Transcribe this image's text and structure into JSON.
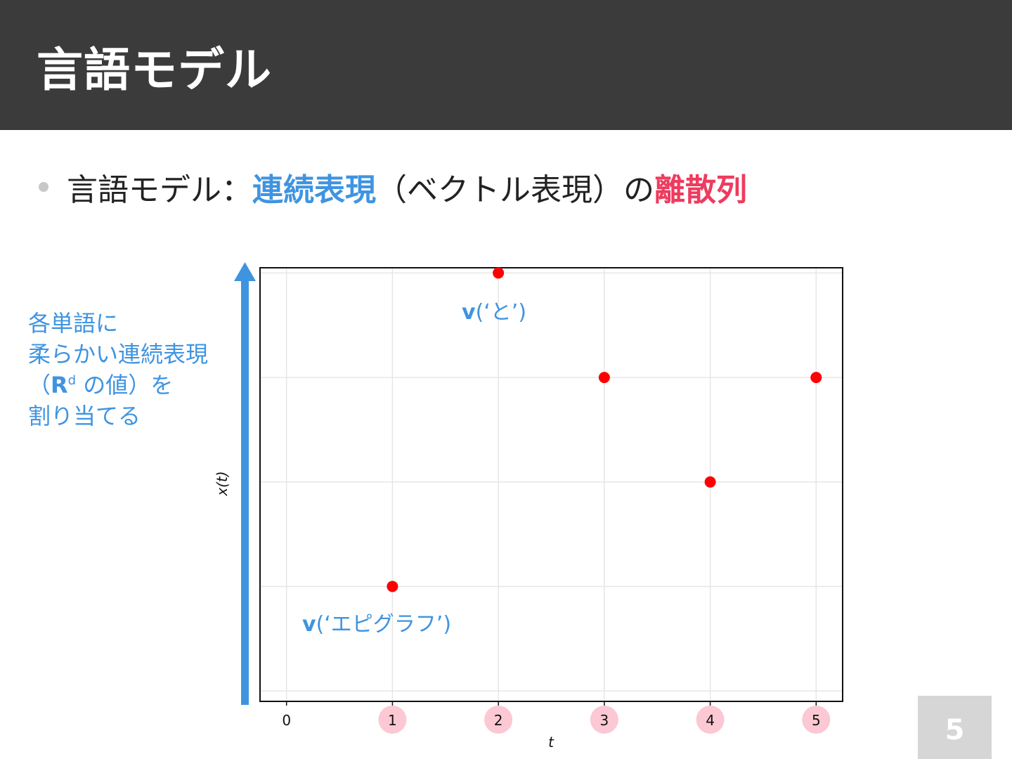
{
  "slide": {
    "title": "言語モデル",
    "bullet": {
      "prefix": "言語モデル：",
      "highlight_blue": "連続表現",
      "middle": "（ベクトル表現）の",
      "highlight_red": "離散列"
    },
    "side_note": {
      "line1": "各単語に",
      "line2": "柔らかい連続表現",
      "line3_pre": "（",
      "line3_rd": "R",
      "line3_sup": "d",
      "line3_post": " の値）を",
      "line4": "割り当てる"
    },
    "page_number": "5"
  },
  "colors": {
    "header_bg": "#3b3b3b",
    "accent_blue": "#3f94e0",
    "accent_red": "#ee3b5e",
    "point_red": "#ff0000",
    "tick_highlight": "#fbc8d4"
  },
  "chart_data": {
    "type": "scatter",
    "xlabel": "t",
    "ylabel": "x(t)",
    "x_ticks": [
      "0",
      "1",
      "2",
      "3",
      "4",
      "5"
    ],
    "highlighted_ticks": [
      "1",
      "2",
      "3",
      "4",
      "5"
    ],
    "xlim": [
      -0.25,
      5.25
    ],
    "ylim": [
      -0.1,
      4.05
    ],
    "grid": true,
    "points": [
      {
        "x": 1,
        "y": 1
      },
      {
        "x": 2,
        "y": 4
      },
      {
        "x": 3,
        "y": 3
      },
      {
        "x": 4,
        "y": 2
      },
      {
        "x": 5,
        "y": 3
      }
    ],
    "annotations": [
      {
        "bold": "v",
        "rest": "(‘エピグラフ’)"
      },
      {
        "bold": "v",
        "rest": "(‘と’)"
      }
    ]
  }
}
